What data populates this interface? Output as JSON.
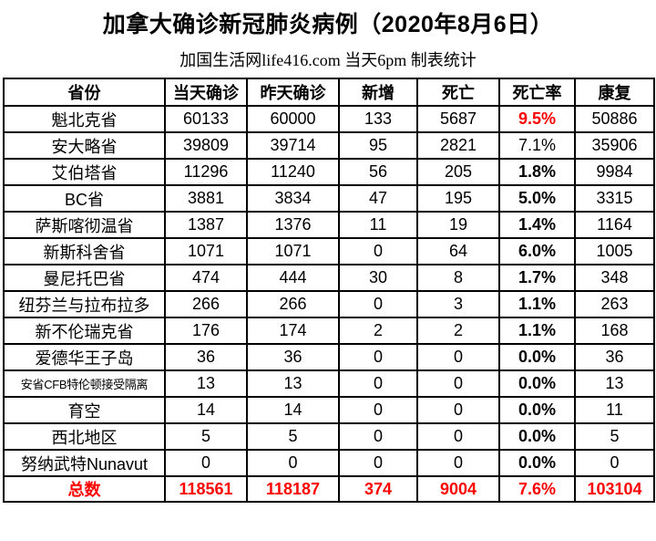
{
  "colors": {
    "accent_red": "#ff0000",
    "text": "#000000",
    "border": "#000000",
    "background": "#ffffff"
  },
  "header": {
    "title": "加拿大确诊新冠肺炎病例（2020年8月6日）",
    "subtitle": "加国生活网life416.com 当天6pm 制表统计"
  },
  "table": {
    "columns": [
      "省份",
      "当天确诊",
      "昨天确诊",
      "新增",
      "死亡",
      "死亡率",
      "康复"
    ],
    "rows": [
      {
        "province": "魁北克省",
        "today": "60133",
        "yesterday": "60000",
        "new_cases": "133",
        "deaths": "5687",
        "death_rate": "9.5%",
        "recovered": "50886",
        "rate_style": "red",
        "province_small": false
      },
      {
        "province": "安大略省",
        "today": "39809",
        "yesterday": "39714",
        "new_cases": "95",
        "deaths": "2821",
        "death_rate": "7.1%",
        "recovered": "35906",
        "rate_style": "plain",
        "province_small": false
      },
      {
        "province": "艾伯塔省",
        "today": "11296",
        "yesterday": "11240",
        "new_cases": "56",
        "deaths": "205",
        "death_rate": "1.8%",
        "recovered": "9984",
        "rate_style": "bold",
        "province_small": false
      },
      {
        "province": "BC省",
        "today": "3881",
        "yesterday": "3834",
        "new_cases": "47",
        "deaths": "195",
        "death_rate": "5.0%",
        "recovered": "3315",
        "rate_style": "bold",
        "province_small": false
      },
      {
        "province": "萨斯喀彻温省",
        "today": "1387",
        "yesterday": "1376",
        "new_cases": "11",
        "deaths": "19",
        "death_rate": "1.4%",
        "recovered": "1164",
        "rate_style": "bold",
        "province_small": false
      },
      {
        "province": "新斯科舍省",
        "today": "1071",
        "yesterday": "1071",
        "new_cases": "0",
        "deaths": "64",
        "death_rate": "6.0%",
        "recovered": "1005",
        "rate_style": "bold",
        "province_small": false
      },
      {
        "province": "曼尼托巴省",
        "today": "474",
        "yesterday": "444",
        "new_cases": "30",
        "deaths": "8",
        "death_rate": "1.7%",
        "recovered": "348",
        "rate_style": "bold",
        "province_small": false
      },
      {
        "province": "纽芬兰与拉布拉多",
        "today": "266",
        "yesterday": "266",
        "new_cases": "0",
        "deaths": "3",
        "death_rate": "1.1%",
        "recovered": "263",
        "rate_style": "bold",
        "province_small": false
      },
      {
        "province": "新不伦瑞克省",
        "today": "176",
        "yesterday": "174",
        "new_cases": "2",
        "deaths": "2",
        "death_rate": "1.1%",
        "recovered": "168",
        "rate_style": "bold",
        "province_small": false
      },
      {
        "province": "爱德华王子岛",
        "today": "36",
        "yesterday": "36",
        "new_cases": "0",
        "deaths": "0",
        "death_rate": "0.0%",
        "recovered": "36",
        "rate_style": "bold",
        "province_small": false
      },
      {
        "province": "安省CFB特伦顿接受隔离",
        "today": "13",
        "yesterday": "13",
        "new_cases": "0",
        "deaths": "0",
        "death_rate": "0.0%",
        "recovered": "13",
        "rate_style": "bold",
        "province_small": true
      },
      {
        "province": "育空",
        "today": "14",
        "yesterday": "14",
        "new_cases": "0",
        "deaths": "0",
        "death_rate": "0.0%",
        "recovered": "11",
        "rate_style": "bold",
        "province_small": false
      },
      {
        "province": "西北地区",
        "today": "5",
        "yesterday": "5",
        "new_cases": "0",
        "deaths": "0",
        "death_rate": "0.0%",
        "recovered": "5",
        "rate_style": "bold",
        "province_small": false
      },
      {
        "province": "努纳武特Nunavut",
        "today": "0",
        "yesterday": "0",
        "new_cases": "0",
        "deaths": "0",
        "death_rate": "0.0%",
        "recovered": "0",
        "rate_style": "bold",
        "province_small": false
      }
    ],
    "total": {
      "label": "总数",
      "today": "118561",
      "yesterday": "118187",
      "new_cases": "374",
      "deaths": "9004",
      "death_rate": "7.6%",
      "recovered": "103104"
    }
  }
}
